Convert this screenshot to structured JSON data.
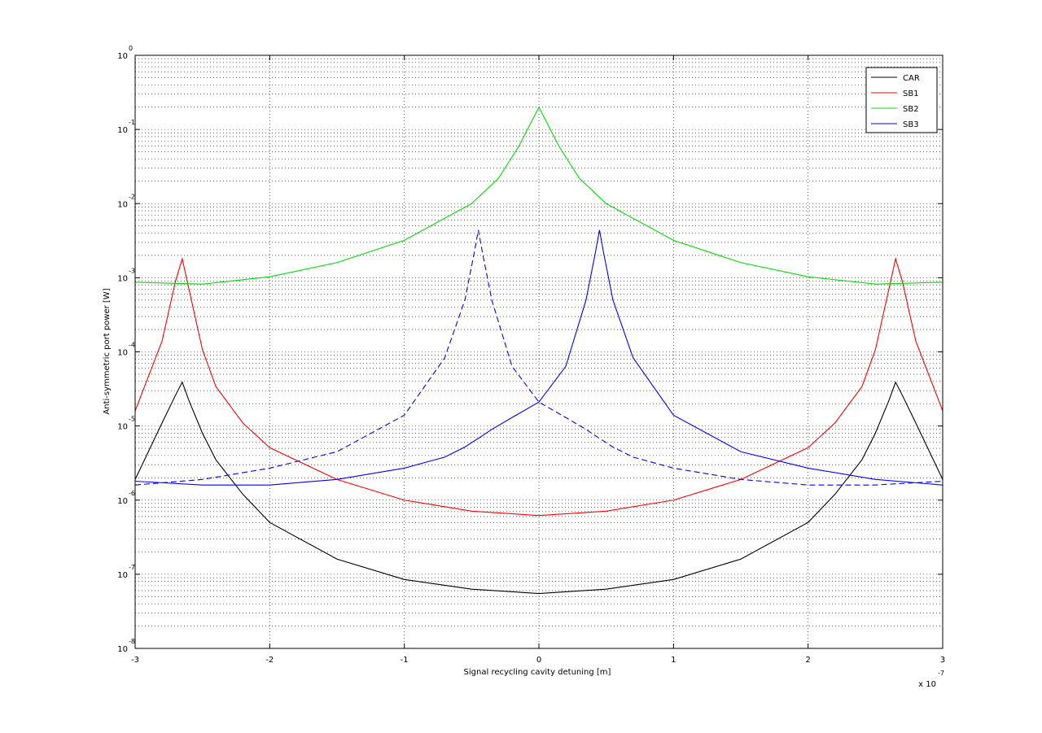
{
  "chart_data": {
    "type": "line",
    "xlabel": "Signal recycling cavity detuning [m]",
    "ylabel": "Anti-symmetric port power [W]",
    "x_multiplier": {
      "base": "x 10",
      "exponent": "-7"
    },
    "xlim": [
      -3,
      3
    ],
    "xticks": [
      -3,
      -2,
      -1,
      0,
      1,
      2,
      3
    ],
    "ylim": [
      1e-08,
      1
    ],
    "yscale": "log",
    "yticks": [
      {
        "value": 1e-08,
        "label": "10",
        "exponent": "-8"
      },
      {
        "value": 1e-07,
        "label": "10",
        "exponent": "-7"
      },
      {
        "value": 1e-06,
        "label": "10",
        "exponent": "-6"
      },
      {
        "value": 1e-05,
        "label": "10",
        "exponent": "-5"
      },
      {
        "value": 0.0001,
        "label": "10",
        "exponent": "-4"
      },
      {
        "value": 0.001,
        "label": "10",
        "exponent": "-3"
      },
      {
        "value": 0.01,
        "label": "10",
        "exponent": "-2"
      },
      {
        "value": 0.1,
        "label": "10",
        "exponent": "-1"
      },
      {
        "value": 1,
        "label": "10",
        "exponent": "0"
      }
    ],
    "grid": true,
    "minor_grid": true,
    "legend": "northeast",
    "series": [
      {
        "name": "CAR",
        "color": "#000000",
        "linestyle": "solid",
        "x": [
          -3,
          -2.8,
          -2.7,
          -2.65,
          -2.6,
          -2.5,
          -2.4,
          -2.2,
          -2,
          -1.5,
          -1,
          -0.5,
          0,
          0.5,
          1,
          1.5,
          2,
          2.2,
          2.4,
          2.5,
          2.6,
          2.65,
          2.7,
          2.8,
          3
        ],
        "values": [
          1.9e-06,
          1.1e-05,
          2.6e-05,
          3.9e-05,
          2.2e-05,
          8e-06,
          3.5e-06,
          1.2e-06,
          5e-07,
          1.6e-07,
          8.5e-08,
          6.3e-08,
          5.5e-08,
          6.3e-08,
          8.5e-08,
          1.6e-07,
          5e-07,
          1.2e-06,
          3.5e-06,
          8e-06,
          2.2e-05,
          3.9e-05,
          2.6e-05,
          1.1e-05,
          1.9e-06
        ]
      },
      {
        "name": "SB1",
        "color": "#ff0000",
        "linestyle": "solid",
        "x": [
          -3,
          -2.8,
          -2.7,
          -2.65,
          -2.6,
          -2.5,
          -2.4,
          -2.2,
          -2,
          -1.5,
          -1,
          -0.5,
          0,
          0.5,
          1,
          1.5,
          2,
          2.2,
          2.4,
          2.5,
          2.6,
          2.65,
          2.7,
          2.8,
          3
        ],
        "values": [
          1.6e-05,
          0.00014,
          0.0009,
          0.0018,
          0.0007,
          0.000107,
          3.4e-05,
          1.1e-05,
          5.1e-06,
          1.9e-06,
          1e-06,
          7.1e-07,
          6.2e-07,
          7.1e-07,
          1e-06,
          1.9e-06,
          5.1e-06,
          1.1e-05,
          3.4e-05,
          0.000107,
          0.0007,
          0.0018,
          0.0009,
          0.00014,
          1.6e-05
        ]
      },
      {
        "name": "SB2",
        "color": "#00dd00",
        "linestyle": "solid",
        "x": [
          -3,
          -2.5,
          -2,
          -1.5,
          -1,
          -0.5,
          -0.3,
          -0.15,
          0,
          0.15,
          0.3,
          0.5,
          1,
          1.5,
          2,
          2.5,
          3
        ],
        "values": [
          0.00087,
          0.00082,
          0.00103,
          0.0016,
          0.0032,
          0.01,
          0.022,
          0.059,
          0.2,
          0.059,
          0.022,
          0.01,
          0.0032,
          0.0016,
          0.00103,
          0.00082,
          0.00087
        ]
      },
      {
        "name": "SB3",
        "color": "#0000ff",
        "linestyle": "solid",
        "x": [
          -3,
          -2.5,
          -2,
          -1.5,
          -1,
          -0.7,
          -0.55,
          -0.48,
          -0.45,
          -0.42,
          -0.35,
          -0.2,
          0,
          0.2,
          0.35,
          0.42,
          0.45,
          0.48,
          0.55,
          0.7,
          1,
          1.5,
          2,
          2.5,
          3
        ],
        "values": [
          1.8e-06,
          1.6e-06,
          1.6e-06,
          1.9e-06,
          2.7e-06,
          3.8e-06,
          5.2e-06,
          6.3e-06,
          6.8e-06,
          7.4e-06,
          9e-06,
          1.3e-05,
          2.1e-05,
          6.4e-05,
          0.0005,
          0.0022,
          0.0044,
          0.0022,
          0.0005,
          8.3e-05,
          1.4e-05,
          4.5e-06,
          2.7e-06,
          1.9e-06,
          1.6e-06
        ]
      },
      {
        "color": "#0000ff",
        "linestyle": "dashed",
        "x": [
          -3,
          -2.5,
          -2,
          -1.5,
          -1,
          -0.7,
          -0.55,
          -0.48,
          -0.45,
          -0.42,
          -0.35,
          -0.2,
          0,
          0.2,
          0.35,
          0.42,
          0.45,
          0.48,
          0.55,
          0.7,
          1,
          1.5,
          2,
          2.5,
          3
        ],
        "values": [
          1.6e-06,
          1.9e-06,
          2.7e-06,
          4.5e-06,
          1.4e-05,
          8.3e-05,
          0.0005,
          0.0022,
          0.0044,
          0.0022,
          0.0005,
          6.4e-05,
          2.1e-05,
          1.3e-05,
          9e-06,
          7.4e-06,
          6.8e-06,
          6.3e-06,
          5.2e-06,
          3.8e-06,
          2.7e-06,
          1.9e-06,
          1.6e-06,
          1.6e-06,
          1.8e-06
        ]
      }
    ]
  }
}
